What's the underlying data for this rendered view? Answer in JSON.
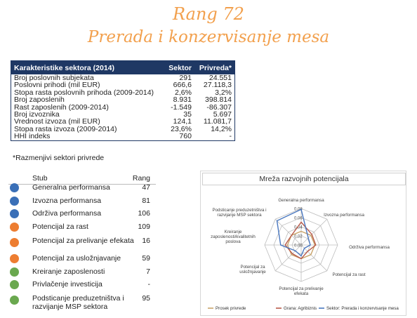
{
  "heading": {
    "rank_line": "Rang 72",
    "sector_line": "Prerada i konzervisanje mesa"
  },
  "characteristics": {
    "columns": [
      "Karakteristike sektora (2014)",
      "Sektor",
      "Privreda*"
    ],
    "rows": [
      [
        "Broj poslovnih subjekata",
        "291",
        "24.551"
      ],
      [
        "Poslovni prihodi (mil EUR)",
        "666,6",
        "27.118,3"
      ],
      [
        "Stopa rasta poslovnih prihoda (2009-2014)",
        "2,6%",
        "3,2%"
      ],
      [
        "Broj zaposlenih",
        "8.931",
        "398.814"
      ],
      [
        "Rast zaposlenih (2009-2014)",
        "-1.549",
        "-86.307"
      ],
      [
        "Broj izvoznika",
        "35",
        "5.697"
      ],
      [
        "Vrednost izvoza (mil EUR)",
        "124,1",
        "11.081,7"
      ],
      [
        "Stopa rasta izvoza (2009-2014)",
        "23,6%",
        "14,2%"
      ],
      [
        "HHI indeks",
        "760",
        "-"
      ]
    ],
    "footnote": "*Razmenjivi sektori privrede"
  },
  "pillars": {
    "header_stub": "Stub",
    "header_rank": "Rang",
    "colors": {
      "blue": "#3a6fb7",
      "orange": "#ed7d31",
      "green": "#6aa84f"
    },
    "items": [
      {
        "label": "Generalna performansa",
        "rank": "47",
        "color": "blue"
      },
      {
        "label": "Izvozna performansa",
        "rank": "81",
        "color": "blue"
      },
      {
        "label": "Održiva performansa",
        "rank": "106",
        "color": "blue"
      },
      {
        "label": "Potencijal za  rast",
        "rank": "109",
        "color": "orange"
      },
      {
        "label": "Potencijal za prelivanje efekata",
        "rank": "16",
        "color": "orange"
      },
      {
        "label": "Potencijal za usložnjavanje",
        "rank": "59",
        "color": "orange"
      },
      {
        "label": "Kreiranje zaposlenosti",
        "rank": "7",
        "color": "green"
      },
      {
        "label": "Privlačenje investicija",
        "rank": "-",
        "color": "green"
      },
      {
        "label": "Podsticanje preduzetništva i razvijanje MSP sektora",
        "rank": "95",
        "color": "green"
      }
    ]
  },
  "chart_data": {
    "type": "radar",
    "title": "Mreža razvojnih potencijala",
    "axes": [
      "Generalna performansa",
      "Izvozna performansa",
      "Održiva performansa",
      "Potencijal za rast",
      "Potencijal za prelivanje efekata",
      "Potencijal za usložnjavanje",
      "Kreiranje zaposlenosti/kvalitetnih poslova",
      "Podsticanje preduzetništva i razvijanje MSP sektora"
    ],
    "ticks": [
      "0.08",
      "0.06",
      "0.04",
      "0.02",
      "0.00"
    ],
    "rmax": 0.08,
    "series": [
      {
        "name": "Prosek privrede",
        "color": "#c9a46a",
        "values": [
          0.03,
          0.03,
          0.03,
          0.03,
          0.03,
          0.03,
          0.03,
          0.03
        ]
      },
      {
        "name": "Grana: Agribiznis",
        "color": "#b85a4a",
        "values": [
          0.05,
          0.033,
          0.032,
          0.02,
          0.03,
          0.027,
          0.035,
          0.03
        ]
      },
      {
        "name": "Sektor: Prerada i konzervisanje mesa",
        "color": "#4a78c0",
        "values": [
          0.078,
          0.022,
          0.02,
          0.01,
          0.024,
          0.018,
          0.045,
          0.075
        ]
      }
    ],
    "legend_position": "bottom"
  }
}
